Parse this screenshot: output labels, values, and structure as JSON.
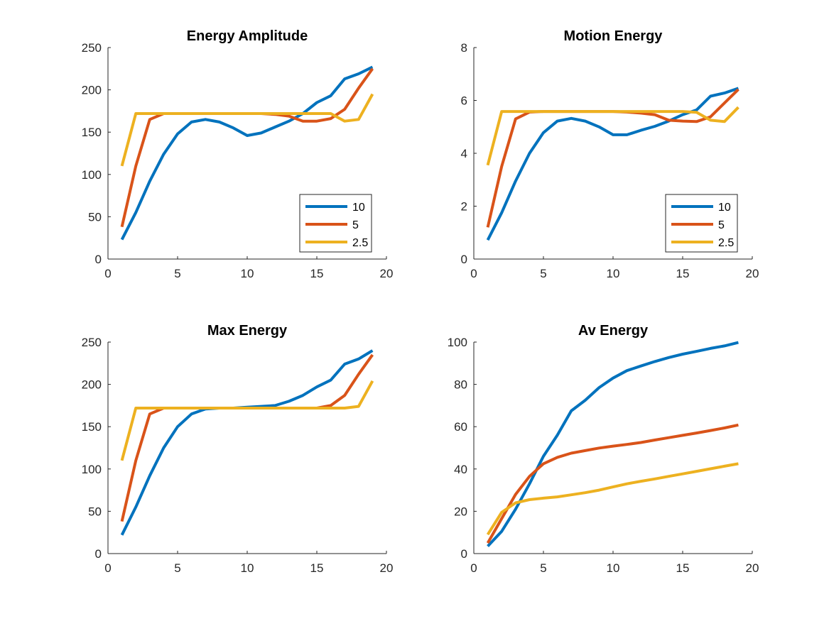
{
  "chart_data": [
    {
      "type": "line",
      "title": "Energy Amplitude",
      "xlabel": "",
      "ylabel": "",
      "xlim": [
        0,
        20
      ],
      "ylim": [
        0,
        250
      ],
      "xticks": [
        0,
        5,
        10,
        15,
        20
      ],
      "yticks": [
        0,
        50,
        100,
        150,
        200,
        250
      ],
      "grid": false,
      "legend": "bottom-right",
      "x": [
        1,
        2,
        3,
        4,
        5,
        6,
        7,
        8,
        9,
        10,
        11,
        12,
        13,
        14,
        15,
        16,
        17,
        18,
        19
      ],
      "series": [
        {
          "name": "10",
          "color": "#0072BD",
          "values": [
            23,
            55,
            92,
            124,
            148,
            162,
            165,
            162,
            155,
            146,
            149,
            156,
            163,
            172,
            185,
            193,
            213,
            219,
            227
          ]
        },
        {
          "name": "5",
          "color": "#D95319",
          "values": [
            38,
            110,
            165,
            172,
            172,
            172,
            172,
            172,
            172,
            172,
            172,
            171,
            169,
            163,
            163,
            166,
            177,
            202,
            225
          ]
        },
        {
          "name": "2.5",
          "color": "#EDB120",
          "values": [
            110,
            172,
            172,
            172,
            172,
            172,
            172,
            172,
            172,
            172,
            172,
            172,
            172,
            172,
            172,
            172,
            163,
            165,
            195
          ]
        }
      ]
    },
    {
      "type": "line",
      "title": "Motion Energy",
      "xlabel": "",
      "ylabel": "",
      "xlim": [
        0,
        20
      ],
      "ylim": [
        0,
        8
      ],
      "xticks": [
        0,
        5,
        10,
        15,
        20
      ],
      "yticks": [
        0,
        2,
        4,
        6,
        8
      ],
      "grid": false,
      "legend": "bottom-right",
      "x": [
        1,
        2,
        3,
        4,
        5,
        6,
        7,
        8,
        9,
        10,
        11,
        12,
        13,
        14,
        15,
        16,
        17,
        18,
        19
      ],
      "series": [
        {
          "name": "10",
          "color": "#0072BD",
          "values": [
            0.72,
            1.75,
            2.95,
            4.0,
            4.78,
            5.22,
            5.32,
            5.22,
            5.0,
            4.7,
            4.7,
            4.87,
            5.02,
            5.22,
            5.46,
            5.64,
            6.16,
            6.28,
            6.46
          ]
        },
        {
          "name": "5",
          "color": "#D95319",
          "values": [
            1.2,
            3.5,
            5.3,
            5.56,
            5.58,
            5.58,
            5.58,
            5.58,
            5.58,
            5.58,
            5.56,
            5.52,
            5.46,
            5.25,
            5.22,
            5.2,
            5.38,
            5.9,
            6.42
          ]
        },
        {
          "name": "2.5",
          "color": "#EDB120",
          "values": [
            3.55,
            5.58,
            5.58,
            5.58,
            5.58,
            5.58,
            5.58,
            5.58,
            5.58,
            5.58,
            5.58,
            5.58,
            5.58,
            5.58,
            5.58,
            5.55,
            5.25,
            5.2,
            5.74
          ]
        }
      ]
    },
    {
      "type": "line",
      "title": "Max Energy",
      "xlabel": "",
      "ylabel": "",
      "xlim": [
        0,
        20
      ],
      "ylim": [
        0,
        250
      ],
      "xticks": [
        0,
        5,
        10,
        15,
        20
      ],
      "yticks": [
        0,
        50,
        100,
        150,
        200,
        250
      ],
      "grid": false,
      "legend": "",
      "x": [
        1,
        2,
        3,
        4,
        5,
        6,
        7,
        8,
        9,
        10,
        11,
        12,
        13,
        14,
        15,
        16,
        17,
        18,
        19
      ],
      "series": [
        {
          "color": "#0072BD",
          "values": [
            22,
            55,
            92,
            125,
            150,
            165,
            171,
            172,
            172,
            173,
            174,
            175,
            180,
            187,
            197,
            205,
            224,
            230,
            240
          ]
        },
        {
          "color": "#D95319",
          "values": [
            38,
            110,
            165,
            172,
            172,
            172,
            172,
            172,
            172,
            172,
            172,
            172,
            172,
            172,
            172,
            175,
            187,
            212,
            235
          ]
        },
        {
          "color": "#EDB120",
          "values": [
            110,
            172,
            172,
            172,
            172,
            172,
            172,
            172,
            172,
            172,
            172,
            172,
            172,
            172,
            172,
            172,
            172,
            174,
            204
          ]
        }
      ]
    },
    {
      "type": "line",
      "title": "Av Energy",
      "xlabel": "",
      "ylabel": "",
      "xlim": [
        0,
        20
      ],
      "ylim": [
        0,
        100
      ],
      "xticks": [
        0,
        5,
        10,
        15,
        20
      ],
      "yticks": [
        0,
        20,
        40,
        60,
        80,
        100
      ],
      "grid": false,
      "legend": "",
      "x": [
        1,
        2,
        3,
        4,
        5,
        6,
        7,
        8,
        9,
        10,
        11,
        12,
        13,
        14,
        15,
        16,
        17,
        18,
        19
      ],
      "series": [
        {
          "color": "#0072BD",
          "values": [
            3.5,
            10.5,
            21,
            33,
            46,
            56,
            67.5,
            72.5,
            78.5,
            83,
            86.5,
            88.7,
            90.8,
            92.7,
            94.3,
            95.6,
            97,
            98.2,
            99.8
          ]
        },
        {
          "color": "#D95319",
          "values": [
            5,
            16.5,
            28,
            36.5,
            42.5,
            45.5,
            47.5,
            48.7,
            49.9,
            50.8,
            51.6,
            52.5,
            53.7,
            54.8,
            55.9,
            57,
            58.2,
            59.4,
            60.8
          ]
        },
        {
          "color": "#EDB120",
          "values": [
            9,
            19.5,
            24,
            25.5,
            26.2,
            26.8,
            27.8,
            28.8,
            30,
            31.5,
            33,
            34.2,
            35.3,
            36.5,
            37.7,
            38.9,
            40.1,
            41.3,
            42.5
          ]
        }
      ]
    }
  ]
}
